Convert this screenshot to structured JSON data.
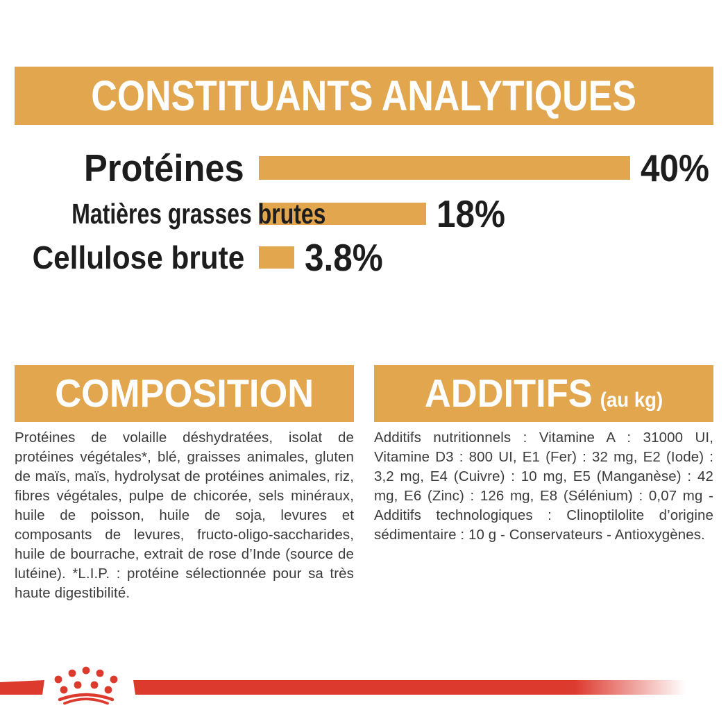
{
  "colors": {
    "gold": "#E2A64F",
    "red": "#DD3A2E",
    "heading_text": "#ffffff",
    "label_text": "#1d1d1d",
    "body_text": "#3b3b3b"
  },
  "header": {
    "title": "CONSTITUANTS ANALYTIQUES"
  },
  "chart_data": {
    "type": "bar",
    "orientation": "horizontal",
    "title": "CONSTITUANTS ANALYTIQUES",
    "categories": [
      "Protéines",
      "Matières grasses brutes",
      "Cellulose brute"
    ],
    "values": [
      40,
      18,
      3.8
    ],
    "value_labels": [
      "40%",
      "18%",
      "3.8%"
    ],
    "unit": "%",
    "xlim": [
      0,
      40
    ],
    "bar_color": "#E2A64F",
    "grid": false,
    "legend": false
  },
  "sections": {
    "composition": {
      "title": "COMPOSITION",
      "body": "Protéines de volaille déshydratées, isolat de protéines végétales*, blé, graisses animales, gluten de maïs, maïs, hydrolysat de protéines animales, riz, fibres végétales, pulpe de chicorée, sels minéraux, huile de poisson, huile de soja, levures et composants de levures, fructo-oligo-saccharides, huile de bourrache, extrait de rose d’Inde (source de lutéine). *L.I.P. : protéine sélectionnée pour sa très haute digestibilité."
    },
    "additifs": {
      "title": "ADDITIFS",
      "title_suffix": "(au kg)",
      "body": "Additifs nutritionnels : Vitamine A : 31000 UI, Vitamine D3 : 800 UI, E1 (Fer) : 32 mg, E2 (Iode) : 3,2 mg, E4 (Cuivre) : 10 mg, E5 (Manganèse) : 42 mg, E6 (Zinc) : 126 mg, E8 (Sélénium) : 0,07 mg - Additifs technologiques : Clinoptilolite d’origine sédimentaire : 10 g - Conservateurs - Antioxygènes."
    }
  },
  "footer": {
    "logo": "royal-canin-crown"
  }
}
